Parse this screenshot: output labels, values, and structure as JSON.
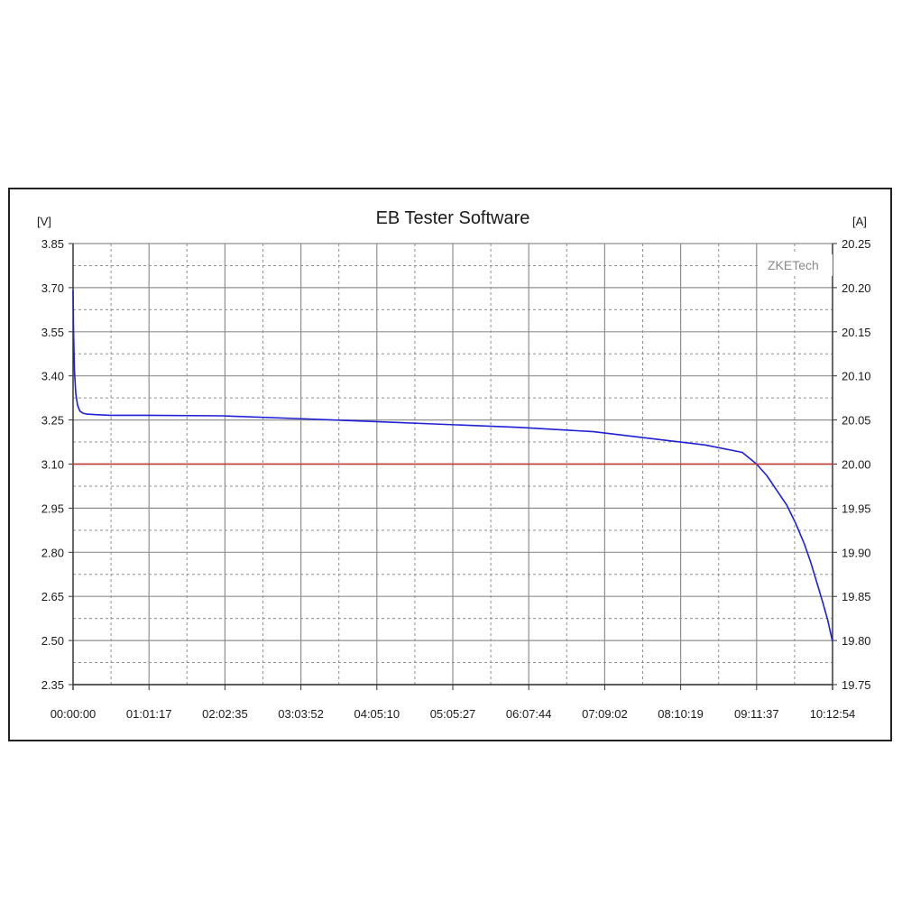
{
  "chart_data": {
    "type": "line",
    "title": "EB Tester Software",
    "watermark": "ZKETech",
    "y_left": {
      "unit_label": "[V]",
      "lim": [
        2.35,
        3.85
      ],
      "ticks": [
        "3.85",
        "3.70",
        "3.55",
        "3.40",
        "3.25",
        "3.10",
        "2.95",
        "2.80",
        "2.65",
        "2.50",
        "2.35"
      ]
    },
    "y_right": {
      "unit_label": "[A]",
      "lim": [
        19.75,
        20.25
      ],
      "ticks": [
        "20.25",
        "20.20",
        "20.15",
        "20.10",
        "20.05",
        "20.00",
        "19.95",
        "19.90",
        "19.85",
        "19.80",
        "19.75"
      ]
    },
    "x": {
      "lim_seconds": [
        0,
        36774
      ],
      "ticks": [
        "00:00:00",
        "01:01:17",
        "02:02:35",
        "03:03:52",
        "04:05:10",
        "05:05:27",
        "06:07:44",
        "07:09:02",
        "08:10:19",
        "09:11:37",
        "10:12:54"
      ]
    },
    "grid": true,
    "series": [
      {
        "axis": "left",
        "color": "#1f1fd6",
        "x_time": [
          "00:00:00",
          "00:00:22",
          "00:01:06",
          "00:02:12",
          "00:03:40",
          "00:05:30",
          "00:08:05",
          "00:11:00",
          "00:18:20",
          "00:30:00",
          "01:00:00",
          "02:00:00",
          "03:00:00",
          "04:00:00",
          "05:00:00",
          "06:00:00",
          "07:00:00",
          "08:00:00",
          "08:30:00",
          "09:00:00",
          "09:11:37",
          "09:20:00",
          "09:28:00",
          "09:36:00",
          "09:43:00",
          "09:50:00",
          "09:55:00",
          "10:00:00",
          "10:05:00",
          "10:09:00",
          "10:12:40"
        ],
        "y": [
          3.69,
          3.56,
          3.42,
          3.34,
          3.3,
          3.28,
          3.273,
          3.27,
          3.268,
          3.266,
          3.266,
          3.264,
          3.255,
          3.245,
          3.235,
          3.225,
          3.21,
          3.18,
          3.165,
          3.14,
          3.1,
          3.06,
          3.01,
          2.96,
          2.9,
          2.83,
          2.77,
          2.7,
          2.63,
          2.57,
          2.5
        ]
      },
      {
        "axis": "right",
        "color": "#c0342c",
        "x_time": [
          "00:00:00",
          "10:12:54"
        ],
        "y": [
          20.0,
          20.0
        ]
      }
    ]
  }
}
